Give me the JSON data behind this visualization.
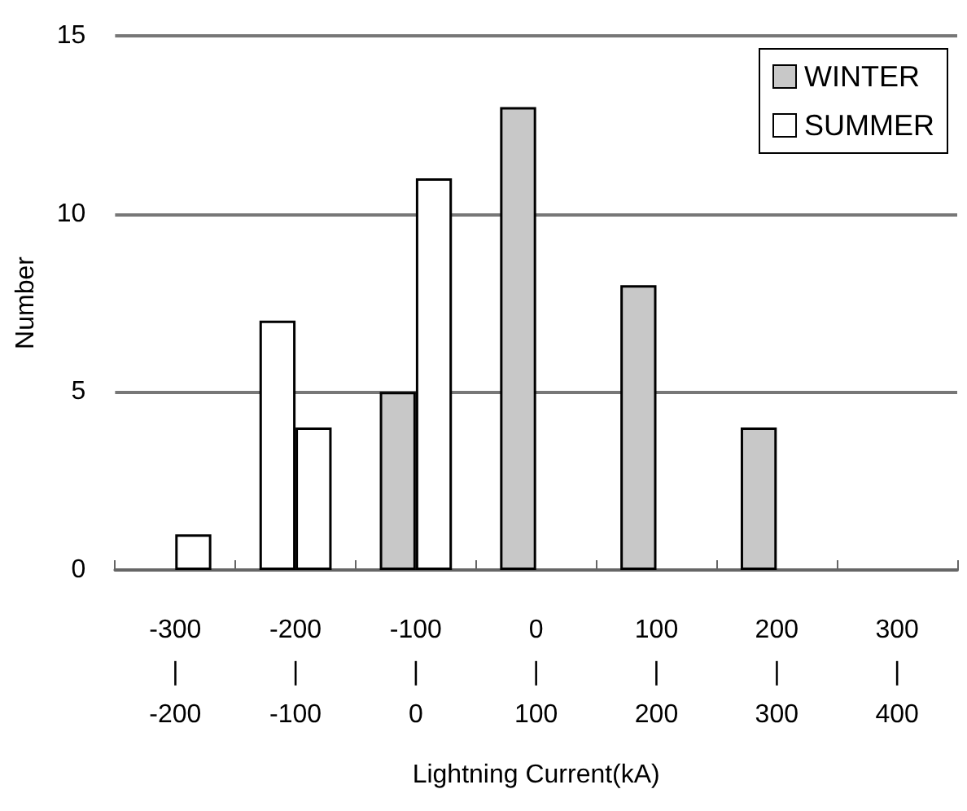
{
  "chart_data": {
    "type": "bar",
    "xlabel": "Lightning Current(kA)",
    "ylabel": "Number",
    "categories": [
      "-300\n|\n-200",
      "-200\n|\n-100",
      "-100\n|\n0",
      "0\n|\n100",
      "100\n|\n200",
      "200\n|\n300",
      "300\n|\n400"
    ],
    "series": [
      {
        "name": "WINTER",
        "color": "#c8c8c8",
        "colors": [
          "#c8c8c8",
          "#ffffff",
          "#c8c8c8",
          "#c8c8c8",
          "#c8c8c8",
          "#c8c8c8",
          "#c8c8c8"
        ],
        "values": [
          null,
          7,
          5,
          13,
          8,
          4,
          null
        ]
      },
      {
        "name": "SUMMER",
        "color": "#ffffff",
        "values": [
          1,
          4,
          11,
          null,
          null,
          null,
          null
        ]
      }
    ],
    "ylim": [
      0,
      15
    ],
    "yticks": [
      0,
      5,
      10,
      15
    ],
    "grid": "y",
    "legend": "top right"
  }
}
